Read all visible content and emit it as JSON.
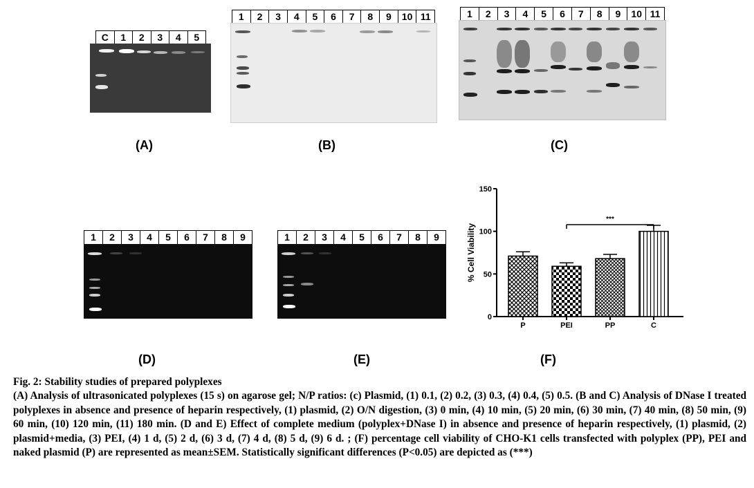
{
  "panels": {
    "A": {
      "label": "(A)",
      "lanes": [
        "C",
        "1",
        "2",
        "3",
        "4",
        "5"
      ]
    },
    "B": {
      "label": "(B)",
      "lanes": [
        "1",
        "2",
        "3",
        "4",
        "5",
        "6",
        "7",
        "8",
        "9",
        "10",
        "11"
      ]
    },
    "C": {
      "label": "(C)",
      "lanes": [
        "1",
        "2",
        "3",
        "4",
        "5",
        "6",
        "7",
        "8",
        "9",
        "10",
        "11"
      ]
    },
    "D": {
      "label": "(D)",
      "lanes": [
        "1",
        "2",
        "3",
        "4",
        "5",
        "6",
        "7",
        "8",
        "9"
      ]
    },
    "E": {
      "label": "(E)",
      "lanes": [
        "1",
        "2",
        "3",
        "4",
        "5",
        "6",
        "7",
        "8",
        "9"
      ]
    },
    "F": {
      "label": "(F)"
    }
  },
  "chart_data": {
    "type": "bar",
    "categories": [
      "P",
      "PEI",
      "PP",
      "C"
    ],
    "values": [
      71,
      59,
      68,
      100
    ],
    "errors": [
      5,
      4,
      5,
      7
    ],
    "ylabel": "% Cell Viability",
    "ylim": [
      0,
      150
    ],
    "yticks": [
      "0",
      "50",
      "100",
      "150"
    ],
    "annotation": "***",
    "annotation_span": [
      "PEI",
      "C"
    ]
  },
  "caption": {
    "title": "Fig. 2: Stability studies of prepared polyplexes",
    "body": "(A) Analysis of ultrasonicated polyplexes (15 s) on agarose gel; N/P ratios: (c) Plasmid, (1) 0.1, (2) 0.2, (3) 0.3, (4) 0.4, (5) 0.5. (B and C) Analysis of DNase I treated polyplexes in absence and presence of heparin respectively, (1) plasmid, (2) O/N digestion, (3) 0 min, (4) 10 min, (5) 20 min, (6) 30 min, (7) 40 min, (8) 50 min, (9) 60 min, (10) 120 min, (11) 180 min. (D and E) Effect of complete medium (polyplex+DNase I) in absence and presence of heparin respectively, (1) plasmid, (2) plasmid+media, (3) PEI, (4) 1 d, (5) 2 d, (6) 3 d, (7) 4 d, (8) 5 d, (9) 6 d. ; (F) percentage cell viability of CHO-K1 cells transfected with polyplex (PP), PEI and naked plasmid (P) are represented as mean±SEM. Statistically significant differences (P<0.05) are depicted as (***)"
  }
}
